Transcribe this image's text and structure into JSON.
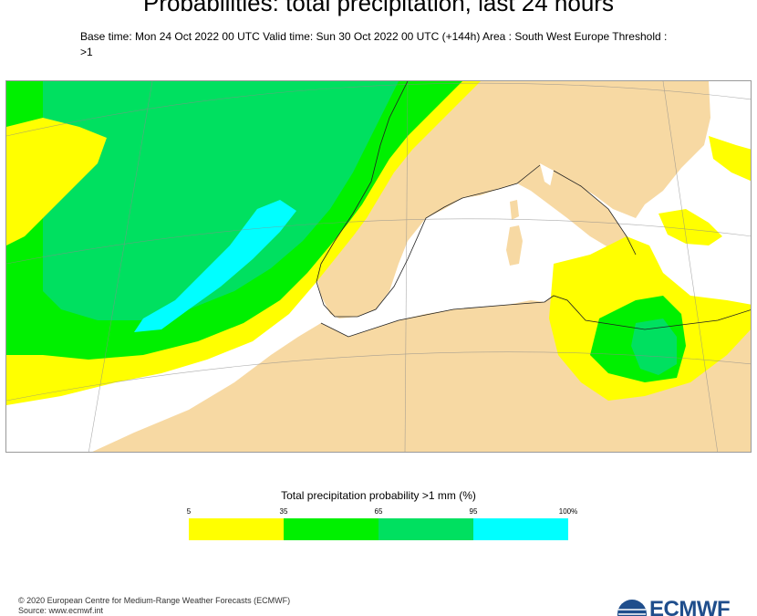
{
  "header": {
    "title": "Probabilities:  total precipitation, last 24 hours",
    "subtitle": "Base time: Mon 24 Oct 2022 00 UTC Valid time: Sun 30 Oct 2022 00 UTC (+144h) Area : South West Europe Threshold : >1"
  },
  "map": {
    "area": "South West Europe",
    "colors": {
      "land": "#f7d9a3",
      "sea": "#ffffff",
      "band_5_35": "#ffff00",
      "band_35_65": "#00f000",
      "band_65_95": "#00e060",
      "band_95_100": "#00ffff",
      "coast": "#202020",
      "border": "#8a8a8a"
    }
  },
  "legend": {
    "title": "Total precipitation probability >1 mm (%)",
    "ticks": [
      "5",
      "35",
      "65",
      "95",
      "100%"
    ],
    "colors": [
      "#ffff00",
      "#00f000",
      "#00e060",
      "#00ffff"
    ]
  },
  "footer": {
    "copyright": "© 2020 European Centre for Medium-Range Weather Forecasts (ECMWF)",
    "source": "Source: www.ecmwf.int",
    "logo": "ECMWF"
  }
}
